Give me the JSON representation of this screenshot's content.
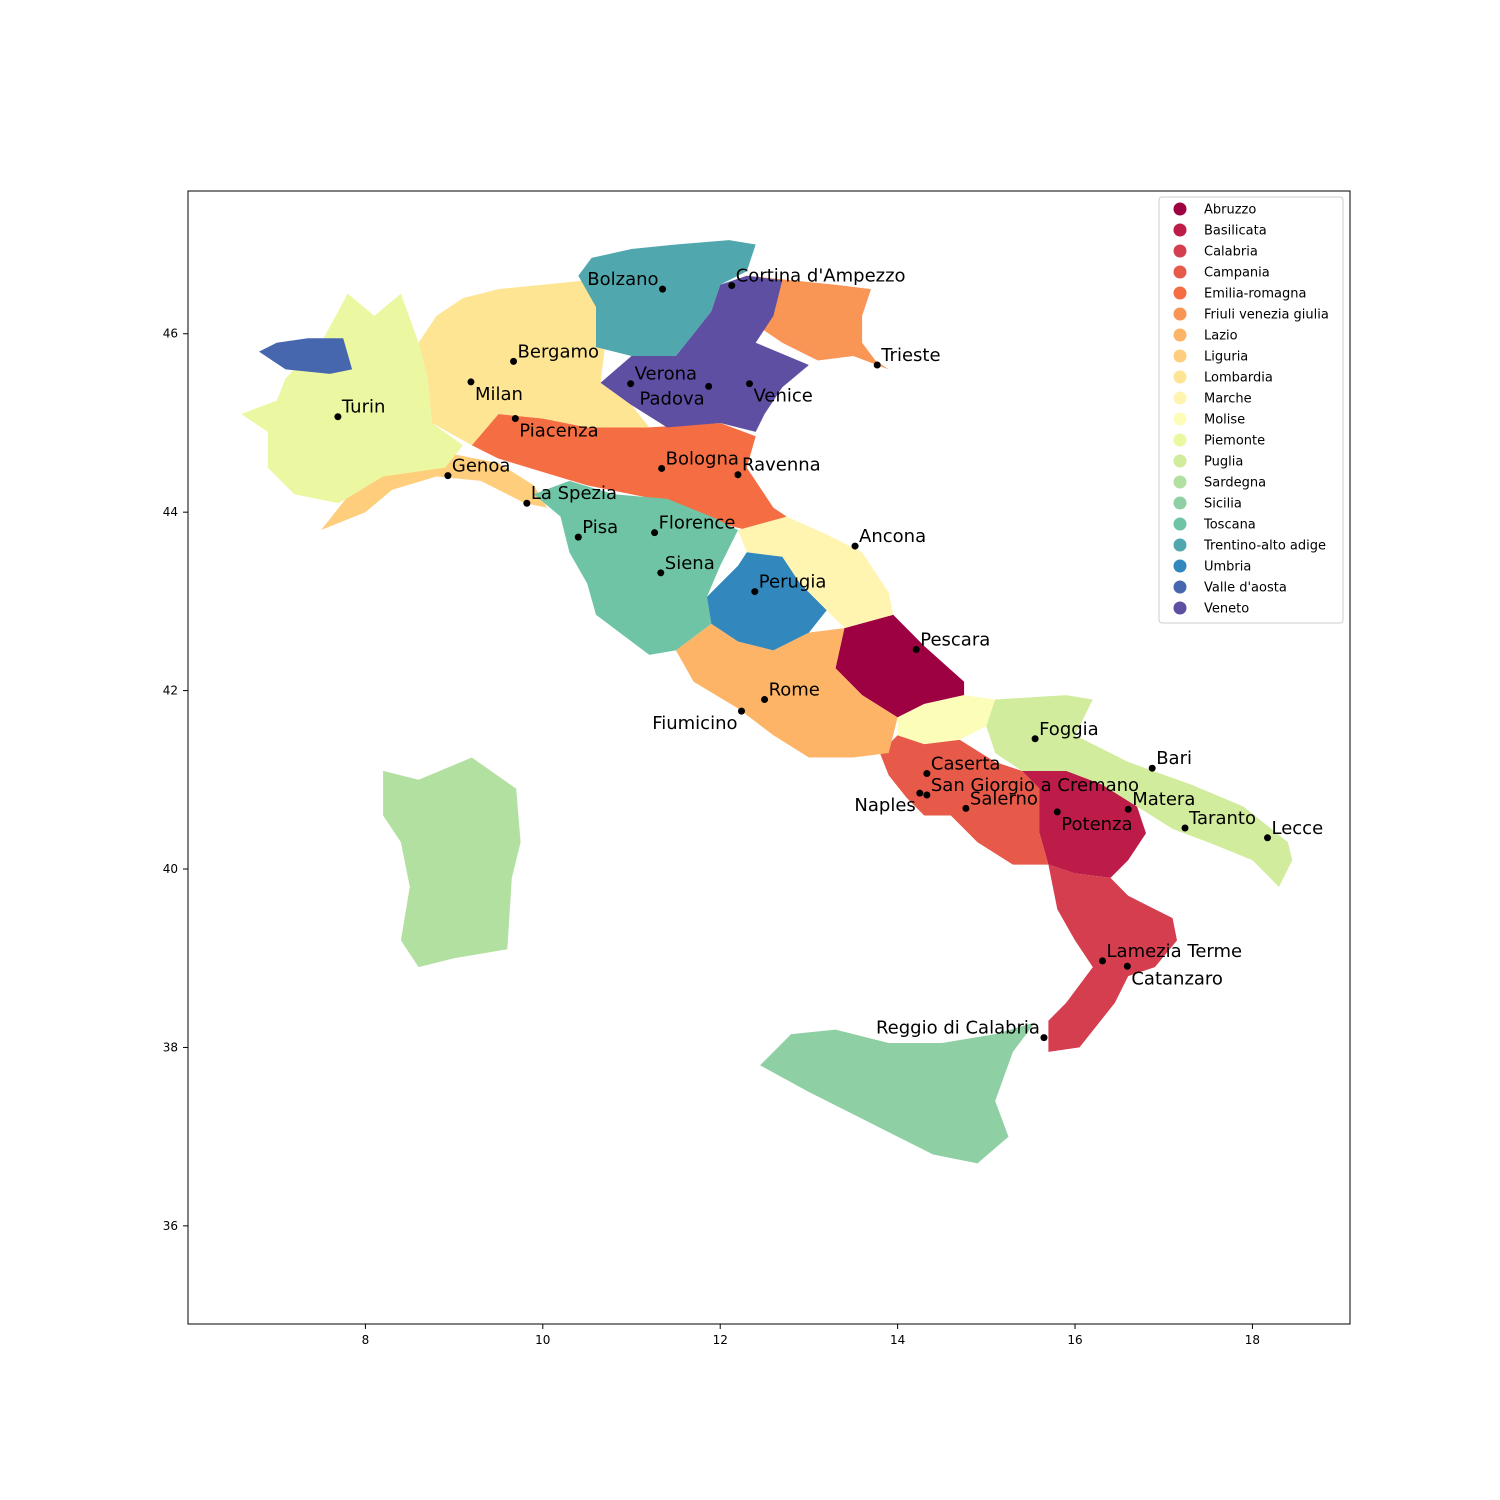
{
  "chart_data": {
    "type": "map",
    "xlim": [
      6.0,
      19.1
    ],
    "ylim": [
      34.9,
      47.6
    ],
    "xticks": [
      8,
      10,
      12,
      14,
      16,
      18
    ],
    "yticks": [
      36,
      38,
      40,
      42,
      44,
      46
    ],
    "tick_labels_x": [
      "8",
      "10",
      "12",
      "14",
      "16",
      "18"
    ],
    "tick_labels_y": [
      "36",
      "38",
      "40",
      "42",
      "44",
      "46"
    ],
    "colormap": "Spectral",
    "legend_position": "top-right",
    "regions": [
      {
        "name": "Abruzzo",
        "color": "#9e0142"
      },
      {
        "name": "Basilicata",
        "color": "#bd1c48"
      },
      {
        "name": "Calabria",
        "color": "#d53e4f"
      },
      {
        "name": "Campania",
        "color": "#e75948"
      },
      {
        "name": "Emilia-romagna",
        "color": "#f46d43"
      },
      {
        "name": "Friuli venezia giulia",
        "color": "#f99555"
      },
      {
        "name": "Lazio",
        "color": "#fdb466"
      },
      {
        "name": "Liguria",
        "color": "#fece7c"
      },
      {
        "name": "Lombardia",
        "color": "#fee593"
      },
      {
        "name": "Marche",
        "color": "#fff5b1"
      },
      {
        "name": "Molise",
        "color": "#fcfdb8"
      },
      {
        "name": "Piemonte",
        "color": "#ecf7a1"
      },
      {
        "name": "Puglia",
        "color": "#d1ec9c"
      },
      {
        "name": "Sardegna",
        "color": "#b2e0a0"
      },
      {
        "name": "Sicilia",
        "color": "#8ed0a4"
      },
      {
        "name": "Toscana",
        "color": "#6ec4a5"
      },
      {
        "name": "Trentino-alto adige",
        "color": "#50a8ae"
      },
      {
        "name": "Umbria",
        "color": "#3288bd"
      },
      {
        "name": "Valle d'aosta",
        "color": "#4667ae"
      },
      {
        "name": "Veneto",
        "color": "#5e4fa2"
      }
    ],
    "cities": [
      {
        "name": "Bolzano",
        "lon": 11.35,
        "lat": 46.5,
        "align": "right"
      },
      {
        "name": "Cortina d'Ampezzo",
        "lon": 12.13,
        "lat": 46.54,
        "align": "left"
      },
      {
        "name": "Bergamo",
        "lon": 9.67,
        "lat": 45.69,
        "align": "left"
      },
      {
        "name": "Trieste",
        "lon": 13.77,
        "lat": 45.65,
        "align": "left"
      },
      {
        "name": "Verona",
        "lon": 10.99,
        "lat": 45.44,
        "align": "left"
      },
      {
        "name": "Milan",
        "lon": 9.19,
        "lat": 45.46,
        "align": "left-below"
      },
      {
        "name": "Padova",
        "lon": 11.87,
        "lat": 45.41,
        "align": "right-below"
      },
      {
        "name": "Venice",
        "lon": 12.33,
        "lat": 45.44,
        "align": "left-below"
      },
      {
        "name": "Turin",
        "lon": 7.69,
        "lat": 45.07,
        "align": "left"
      },
      {
        "name": "Piacenza",
        "lon": 9.69,
        "lat": 45.05,
        "align": "left-below"
      },
      {
        "name": "Bologna",
        "lon": 11.34,
        "lat": 44.49,
        "align": "left"
      },
      {
        "name": "Ravenna",
        "lon": 12.2,
        "lat": 44.42,
        "align": "left"
      },
      {
        "name": "Genoa",
        "lon": 8.93,
        "lat": 44.41,
        "align": "left"
      },
      {
        "name": "La Spezia",
        "lon": 9.82,
        "lat": 44.1,
        "align": "left"
      },
      {
        "name": "Florence",
        "lon": 11.26,
        "lat": 43.77,
        "align": "left"
      },
      {
        "name": "Pisa",
        "lon": 10.4,
        "lat": 43.72,
        "align": "left"
      },
      {
        "name": "Ancona",
        "lon": 13.52,
        "lat": 43.62,
        "align": "left"
      },
      {
        "name": "Siena",
        "lon": 11.33,
        "lat": 43.32,
        "align": "left"
      },
      {
        "name": "Perugia",
        "lon": 12.39,
        "lat": 43.11,
        "align": "left"
      },
      {
        "name": "Pescara",
        "lon": 14.21,
        "lat": 42.46,
        "align": "left"
      },
      {
        "name": "Rome",
        "lon": 12.5,
        "lat": 41.9,
        "align": "left"
      },
      {
        "name": "Fiumicino",
        "lon": 12.24,
        "lat": 41.77,
        "align": "right-below"
      },
      {
        "name": "Foggia",
        "lon": 15.55,
        "lat": 41.46,
        "align": "left"
      },
      {
        "name": "Bari",
        "lon": 16.87,
        "lat": 41.13,
        "align": "left"
      },
      {
        "name": "Caserta",
        "lon": 14.33,
        "lat": 41.07,
        "align": "left"
      },
      {
        "name": "San Giorgio a Cremano",
        "lon": 14.33,
        "lat": 40.83,
        "align": "left"
      },
      {
        "name": "Naples",
        "lon": 14.25,
        "lat": 40.85,
        "align": "right-below"
      },
      {
        "name": "Matera",
        "lon": 16.6,
        "lat": 40.67,
        "align": "left"
      },
      {
        "name": "Salerno",
        "lon": 14.77,
        "lat": 40.68,
        "align": "left"
      },
      {
        "name": "Potenza",
        "lon": 15.8,
        "lat": 40.64,
        "align": "left-below"
      },
      {
        "name": "Taranto",
        "lon": 17.24,
        "lat": 40.46,
        "align": "left"
      },
      {
        "name": "Lecce",
        "lon": 18.17,
        "lat": 40.35,
        "align": "left"
      },
      {
        "name": "Lamezia Terme",
        "lon": 16.31,
        "lat": 38.97,
        "align": "left"
      },
      {
        "name": "Catanzaro",
        "lon": 16.59,
        "lat": 38.91,
        "align": "left-below"
      },
      {
        "name": "Reggio di Calabria",
        "lon": 15.65,
        "lat": 38.11,
        "align": "right"
      }
    ]
  }
}
